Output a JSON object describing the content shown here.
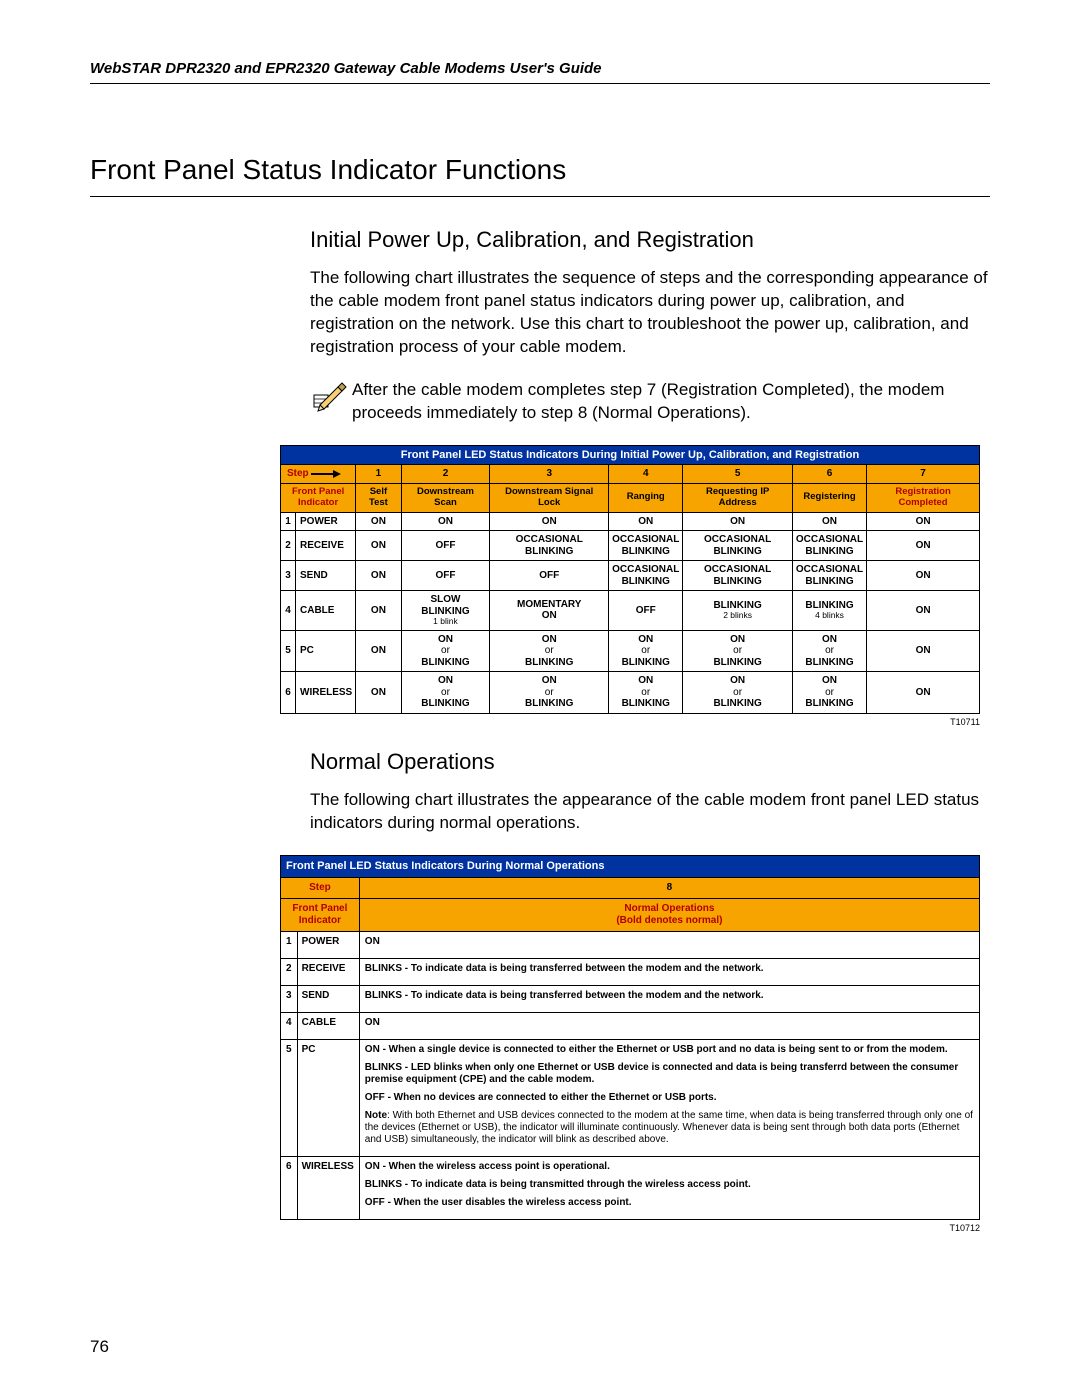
{
  "header": "WebSTAR DPR2320 and EPR2320 Gateway Cable Modems User's Guide",
  "page_number": "76",
  "section_title": "Front Panel Status Indicator Functions",
  "section1": {
    "title": "Initial Power Up, Calibration, and Registration",
    "paragraph": "The following chart illustrates the sequence of steps and the corresponding appearance of the cable modem front panel status indicators during power up, calibration, and registration on the network. Use this chart to troubleshoot the power up, calibration, and registration process of your cable modem.",
    "note": "After the cable modem completes step 7 (Registration Completed), the modem proceeds immediately to step 8 (Normal Operations)."
  },
  "table1": {
    "title": "Front Panel LED Status Indicators During Initial Power Up, Calibration, and Registration",
    "step_label": "Step",
    "steps": [
      "1",
      "2",
      "3",
      "4",
      "5",
      "6",
      "7"
    ],
    "front_panel_label": "Front Panel Indicator",
    "col_headers": [
      "Self Test",
      "Downstream Scan",
      "Downstream Signal Lock",
      "Ranging",
      "Requesting IP Address",
      "Registering",
      "Registration Completed"
    ],
    "rows": [
      {
        "n": "1",
        "ind": "POWER",
        "cells": [
          "ON",
          "ON",
          "ON",
          "ON",
          "ON",
          "ON",
          "ON"
        ]
      },
      {
        "n": "2",
        "ind": "RECEIVE",
        "cells": [
          "ON",
          "OFF",
          "OCCASIONAL BLINKING",
          "OCCASIONAL BLINKING",
          "OCCASIONAL BLINKING",
          "OCCASIONAL BLINKING",
          "ON"
        ]
      },
      {
        "n": "3",
        "ind": "SEND",
        "cells": [
          "ON",
          "OFF",
          "OFF",
          "OCCASIONAL BLINKING",
          "OCCASIONAL BLINKING",
          "OCCASIONAL BLINKING",
          "ON"
        ]
      },
      {
        "n": "4",
        "ind": "CABLE",
        "cells": [
          "ON",
          "SLOW BLINKING|1 blink",
          "MOMENTARY ON",
          "OFF",
          "BLINKING|2 blinks",
          "BLINKING|4 blinks",
          "ON"
        ]
      },
      {
        "n": "5",
        "ind": "PC",
        "cells": [
          "ON",
          "ON or BLINKING",
          "ON or BLINKING",
          "ON or BLINKING",
          "ON or BLINKING",
          "ON or BLINKING",
          "ON"
        ]
      },
      {
        "n": "6",
        "ind": "WIRELESS",
        "cells": [
          "ON",
          "ON or BLINKING",
          "ON or BLINKING",
          "ON or BLINKING",
          "ON or BLINKING",
          "ON or BLINKING",
          "ON"
        ]
      }
    ],
    "ref": "T10711"
  },
  "section2": {
    "title": "Normal Operations",
    "paragraph": "The following chart illustrates the appearance of the cable modem front panel LED status indicators during normal operations."
  },
  "table2": {
    "title": "Front Panel LED Status Indicators During Normal Operations",
    "step_label": "Step",
    "step_value": "8",
    "front_panel_label": "Front Panel Indicator",
    "normal_ops": "Normal Operations",
    "normal_sub": "(Bold denotes normal)",
    "rows": [
      {
        "n": "1",
        "ind": "POWER",
        "paras": [
          "ON"
        ],
        "bold": [
          true
        ]
      },
      {
        "n": "2",
        "ind": "RECEIVE",
        "paras": [
          "BLINKS - To indicate data is being transferred between the modem and the network."
        ],
        "bold": [
          true
        ]
      },
      {
        "n": "3",
        "ind": "SEND",
        "paras": [
          "BLINKS - To indicate data is being transferred between the modem and the network."
        ],
        "bold": [
          true
        ]
      },
      {
        "n": "4",
        "ind": "CABLE",
        "paras": [
          "ON"
        ],
        "bold": [
          true
        ]
      },
      {
        "n": "5",
        "ind": "PC",
        "paras": [
          "ON - When a single device is connected to either the Ethernet or USB port and no data is being sent to or from the modem.",
          "BLINKS - LED blinks when only one Ethernet or USB device is connected and data is being transferrd between the consumer premise equipment (CPE) and the cable modem.",
          "OFF - When no devices are connected to either the Ethernet or USB ports.",
          "Note: With both Ethernet and USB devices connected to the modem at the same time, when data is being transferred through only one of the devices (Ethernet or USB), the indicator will illuminate continuously. Whenever data is being sent through both data ports (Ethernet and USB) simultaneously, the indicator will blink as described above."
        ],
        "bold": [
          true,
          true,
          true,
          false
        ]
      },
      {
        "n": "6",
        "ind": "WIRELESS",
        "paras": [
          "ON - When the wireless access point is operational.",
          "BLINKS - To indicate data is being transmitted through the wireless access point.",
          "OFF - When the user disables the wireless access point."
        ],
        "bold": [
          true,
          true,
          true
        ]
      }
    ],
    "ref": "T10712"
  },
  "colors": {
    "blue": "#0033a0",
    "gold": "#f7a400",
    "red": "#b00000"
  }
}
